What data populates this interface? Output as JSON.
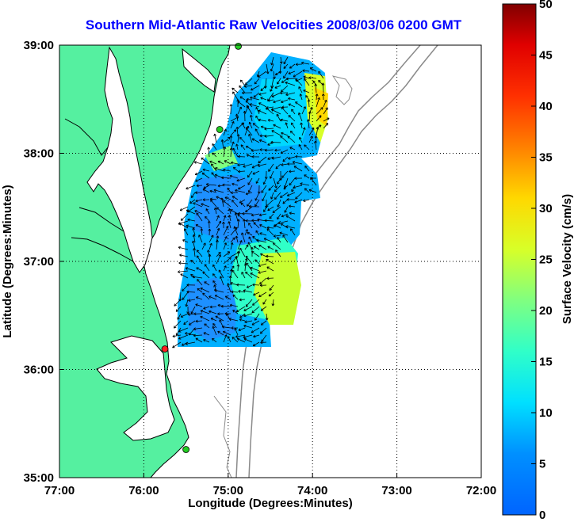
{
  "title": "Southern Mid-Atlantic Raw Velocities 2008/03/06 0200 GMT",
  "map": {
    "xlabel": "Longitude (Degrees:Minutes)",
    "ylabel": "Latitude (Degrees:Minutes)",
    "x_ticks": [
      "77:00",
      "76:00",
      "75:00",
      "74:00",
      "73:00",
      "72:00"
    ],
    "y_ticks": [
      "39:00",
      "38:00",
      "37:00",
      "36:00",
      "35:00"
    ],
    "xlim": [
      -77,
      -72
    ],
    "ylim": [
      35,
      39
    ],
    "grid": true,
    "colors": {
      "land": "#55f0a0",
      "coast": "#000000",
      "bathymetry": "#8a8a8a",
      "grid": "#000000",
      "station_active": "#22cc22",
      "station_inactive": "#ff2020"
    },
    "stations": [
      {
        "lon": -74.88,
        "lat": 38.99,
        "status": "active"
      },
      {
        "lon": -75.1,
        "lat": 38.22,
        "status": "active"
      },
      {
        "lon": -75.75,
        "lat": 36.19,
        "status": "inactive"
      },
      {
        "lon": -75.5,
        "lat": 35.26,
        "status": "active"
      }
    ]
  },
  "colorbar": {
    "label": "Surface Velocity (cm/s)",
    "ticks": [
      "0",
      "5",
      "10",
      "15",
      "20",
      "25",
      "30",
      "35",
      "40",
      "45",
      "50"
    ],
    "range": [
      0,
      50
    ],
    "colormap": "jet"
  }
}
